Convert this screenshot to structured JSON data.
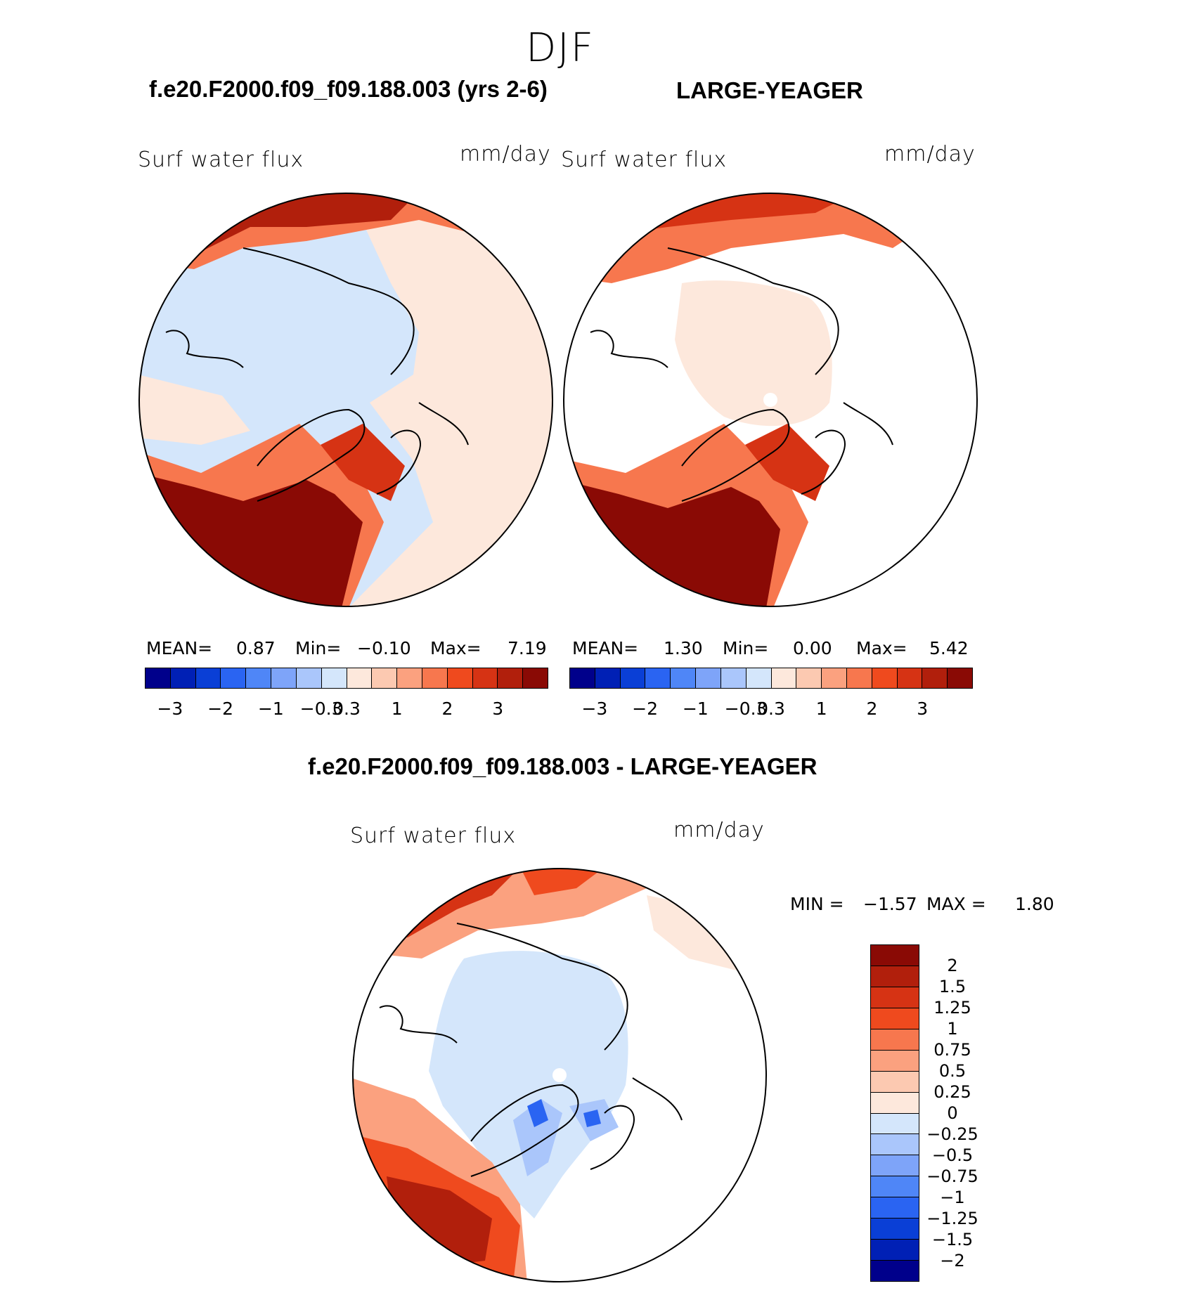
{
  "season": "DJF",
  "case_title": "f.e20.F2000.f09_f09.188.003 (yrs 2-6)",
  "obs_title": "LARGE-YEAGER",
  "diff_title": "f.e20.F2000.f09_f09.188.003 - LARGE-YEAGER",
  "colors": {
    "main_scale": [
      "#00008b",
      "#0020b5",
      "#0a3fd6",
      "#2a64f2",
      "#4f86f7",
      "#7ea4f9",
      "#aac6fb",
      "#d4e6fb",
      "#fde8dc",
      "#fcc9b1",
      "#fba17f",
      "#f7774e",
      "#ef4a1e",
      "#d63314",
      "#b11f0c",
      "#8a0a05"
    ],
    "diff_scale": [
      "#8a0a05",
      "#b11f0c",
      "#d63314",
      "#ef4a1e",
      "#f7774e",
      "#fba17f",
      "#fcc9b1",
      "#fde8dc",
      "#d4e6fb",
      "#aac6fb",
      "#7ea4f9",
      "#4f86f7",
      "#2a64f2",
      "#0a3fd6",
      "#0020b5",
      "#00008b"
    ]
  },
  "panels": {
    "case": {
      "var": "Surf water flux",
      "units": "mm/day",
      "mean_label": "MEAN=",
      "mean": "0.87",
      "min_label": "Min=",
      "min": "−0.10",
      "max_label": "Max=",
      "max": "7.19"
    },
    "obs": {
      "var": "Surf water flux",
      "units": "mm/day",
      "mean_label": "MEAN=",
      "mean": "1.30",
      "min_label": "Min=",
      "min": "0.00",
      "max_label": "Max=",
      "max": "5.42"
    },
    "diff": {
      "var": "Surf water flux",
      "units": "mm/day",
      "min_label": "MIN =",
      "min": "−1.57",
      "max_label": "MAX =",
      "max": "1.80"
    }
  },
  "main_colorbar_labels": [
    "−3",
    "−2",
    "−1",
    "−0.3",
    "0.3",
    "1",
    "2",
    "3"
  ],
  "diff_colorbar_labels": [
    "2",
    "1.5",
    "1.25",
    "1",
    "0.75",
    "0.5",
    "0.25",
    "0",
    "−0.25",
    "−0.5",
    "−0.75",
    "−1",
    "−1.25",
    "−1.5",
    "−2"
  ]
}
